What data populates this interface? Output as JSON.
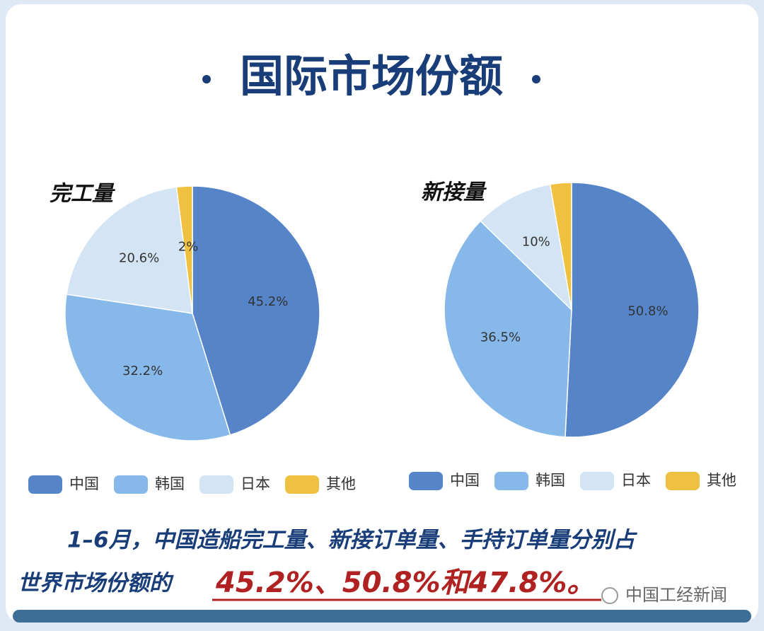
{
  "title": "国际市场份额",
  "chart_data": [
    {
      "type": "pie",
      "title": "完工量",
      "categories": [
        "中国",
        "韩国",
        "日本",
        "其他"
      ],
      "values": [
        45.2,
        32.2,
        20.6,
        2
      ],
      "value_labels": [
        "45.2%",
        "32.2%",
        "20.6%",
        "2%"
      ],
      "colors": [
        "#5585c8",
        "#86b8ea",
        "#d3e4f5",
        "#f0c040"
      ]
    },
    {
      "type": "pie",
      "title": "新接量",
      "categories": [
        "中国",
        "韩国",
        "日本",
        "其他"
      ],
      "values": [
        50.8,
        36.5,
        10,
        2.7
      ],
      "value_labels": [
        "50.8%",
        "36.5%",
        "10%",
        null
      ],
      "colors": [
        "#5585c8",
        "#86b8ea",
        "#d3e4f5",
        "#f0c040"
      ]
    }
  ],
  "caption": {
    "line1": "1–6月，中国造船完工量、新接订单量、手持订单量分别占",
    "line2": "世界市场份额的",
    "highlight": "45.2%、50.8%和47.8%。"
  },
  "watermark": "中国工经新闻"
}
